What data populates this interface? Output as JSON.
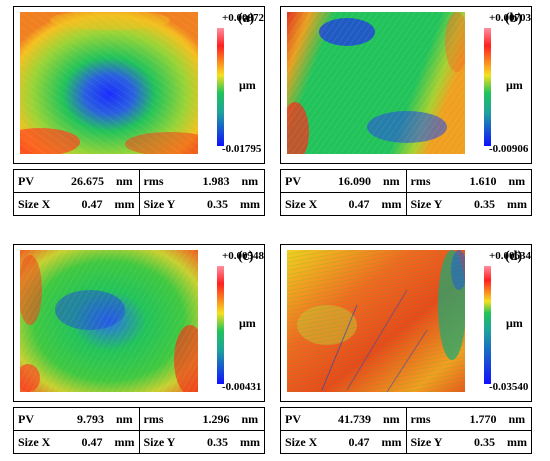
{
  "panels": [
    {
      "label": "(a)",
      "cb_max": "+0.00872",
      "cb_min": "-0.01795",
      "unit": "μm",
      "pv_label": "PV",
      "pv": "26.675",
      "pv_unit": "nm",
      "rms_label": "rms",
      "rms": "1.983",
      "rms_unit": "nm",
      "sx_label": "Size X",
      "sx": "0.47",
      "sx_unit": "mm",
      "sy_label": "Size Y",
      "sy": "0.35",
      "sy_unit": "mm"
    },
    {
      "label": "(b)",
      "cb_max": "+0.00703",
      "cb_min": "-0.00906",
      "unit": "μm",
      "pv_label": "PV",
      "pv": "16.090",
      "pv_unit": "nm",
      "rms_label": "rms",
      "rms": "1.610",
      "rms_unit": "nm",
      "sx_label": "Size X",
      "sx": "0.47",
      "sx_unit": "mm",
      "sy_label": "Size Y",
      "sy": "0.35",
      "sy_unit": "mm"
    },
    {
      "label": "(c)",
      "cb_max": "+0.00548",
      "cb_min": "-0.00431",
      "unit": "μm",
      "pv_label": "PV",
      "pv": "9.793",
      "pv_unit": "nm",
      "rms_label": "rms",
      "rms": "1.296",
      "rms_unit": "nm",
      "sx_label": "Size X",
      "sx": "0.47",
      "sx_unit": "mm",
      "sy_label": "Size Y",
      "sy": "0.35",
      "sy_unit": "mm"
    },
    {
      "label": "(d)",
      "cb_max": "+0.00634",
      "cb_min": "-0.03540",
      "unit": "μm",
      "pv_label": "PV",
      "pv": "41.739",
      "pv_unit": "nm",
      "rms_label": "rms",
      "rms": "1.770",
      "rms_unit": "nm",
      "sx_label": "Size X",
      "sx": "0.47",
      "sx_unit": "mm",
      "sy_label": "Size Y",
      "sy": "0.35",
      "sy_unit": "mm"
    }
  ],
  "colors": {
    "high": "#ff3030",
    "mid_high": "#f5e020",
    "mid": "#22c35a",
    "mid_low": "#1fa0a0",
    "low": "#1010ff",
    "top_pink": "#ff90a0"
  }
}
